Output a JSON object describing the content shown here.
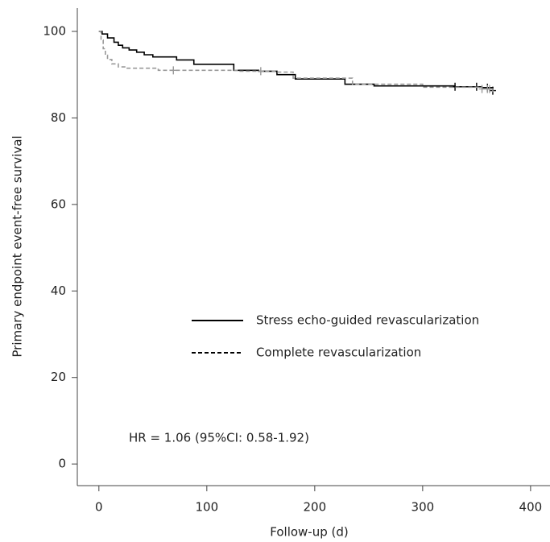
{
  "chart_data": {
    "type": "step",
    "y_label": "Primary endpoint event-free survival",
    "x_label": "Follow-up (d)",
    "annotation": "HR = 1.06 (95%CI: 0.58-1.92)",
    "xlim": [
      -20,
      418
    ],
    "ylim": [
      -5,
      105.4
    ],
    "xticks": [
      0,
      100,
      200,
      300,
      400
    ],
    "yticks": [
      0,
      20,
      40,
      60,
      80,
      100
    ],
    "series": [
      {
        "name": "Stress echo-guided revascularization",
        "color": "#000000",
        "dash": "solid",
        "x": [
          0,
          3,
          8,
          14,
          18,
          22,
          28,
          35,
          42,
          50,
          72,
          88,
          125,
          148,
          165,
          182,
          228,
          255,
          330,
          355,
          365
        ],
        "values": [
          100,
          99.4,
          98.5,
          97.5,
          96.8,
          96.2,
          95.7,
          95.2,
          94.6,
          94.1,
          93.4,
          92.4,
          91,
          90.8,
          90,
          89,
          87.8,
          87.4,
          87.2,
          87,
          86.3
        ],
        "censored": [
          330,
          350,
          360,
          365
        ]
      },
      {
        "name": "Complete revascularization",
        "color": "#999999",
        "dash": "dashed",
        "x": [
          0,
          2,
          4,
          6,
          8,
          12,
          18,
          25,
          55,
          130,
          165,
          180,
          235,
          300,
          355,
          365
        ],
        "values": [
          100,
          98,
          96,
          94.5,
          93.5,
          92.5,
          91.8,
          91.5,
          91,
          90.8,
          90.6,
          89.2,
          87.8,
          87.1,
          86.7,
          86
        ],
        "censored": [
          69,
          150,
          355,
          360,
          362
        ]
      }
    ]
  }
}
